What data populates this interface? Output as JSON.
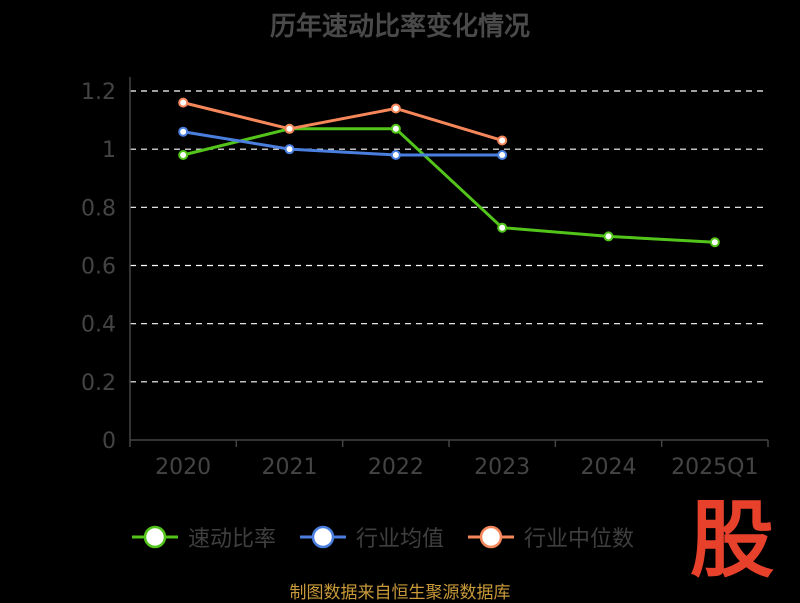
{
  "title": "历年速动比率变化情况",
  "chart_data": {
    "type": "line",
    "categories": [
      "2020",
      "2021",
      "2022",
      "2023",
      "2024",
      "2025Q1"
    ],
    "ylim": [
      0,
      1.2
    ],
    "yticks": [
      "0",
      "0.2",
      "0.4",
      "0.6",
      "0.8",
      "1",
      "1.2"
    ],
    "grid": true,
    "legend_position": "bottom",
    "series": [
      {
        "name": "速动比率",
        "color": "#52c41a",
        "values": [
          0.98,
          1.07,
          1.07,
          0.73,
          0.7,
          0.68
        ]
      },
      {
        "name": "行业均值",
        "color": "#4a7fe0",
        "values": [
          1.06,
          1.0,
          0.98,
          0.98,
          null,
          null
        ]
      },
      {
        "name": "行业中位数",
        "color": "#f5875a",
        "values": [
          1.16,
          1.07,
          1.14,
          1.03,
          null,
          null
        ]
      }
    ]
  },
  "watermark": "股",
  "source": "制图数据来自恒生聚源数据库"
}
